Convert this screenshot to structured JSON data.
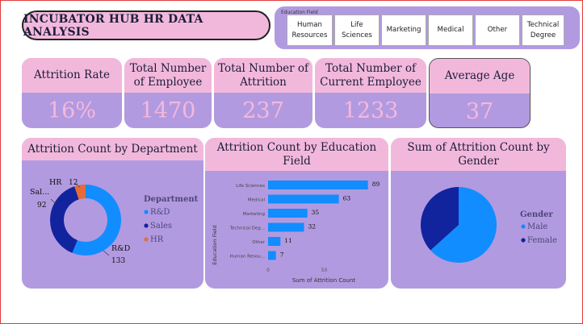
{
  "title": "INCUBATOR HUB HR  DATA ANALYSIS",
  "slicer": {
    "title": "Education Field",
    "options": [
      {
        "line1": "Human",
        "line2": "Resources"
      },
      {
        "line1": "Life",
        "line2": "Sciences"
      },
      {
        "line1": "Marketing",
        "line2": ""
      },
      {
        "line1": "Medical",
        "line2": ""
      },
      {
        "line1": "Other",
        "line2": ""
      },
      {
        "line1": "Technical",
        "line2": "Degree"
      }
    ]
  },
  "kpis": [
    {
      "label": "Attrition Rate",
      "value": "16%"
    },
    {
      "label": "Total Number of Employee",
      "value": "1470"
    },
    {
      "label": "Total Number of Attrition",
      "value": "237"
    },
    {
      "label": "Total Number of Current Employee",
      "value": "1233"
    },
    {
      "label": "Average Age",
      "value": "37"
    }
  ],
  "colors": {
    "primary": "#118dff",
    "secondary": "#12239e",
    "tertiary": "#e66c37",
    "card": "#b29ae0",
    "header": "#f2b8dc"
  },
  "chart_data": [
    {
      "type": "pie",
      "title": "Attrition Count by Department",
      "legend_title": "Department",
      "legend_position": "right",
      "style": "donut",
      "slices": [
        {
          "name": "R&D",
          "value": 133,
          "label": "R&D",
          "value_label": "133"
        },
        {
          "name": "Sales",
          "value": 92,
          "label": "Sal...",
          "value_label": "92"
        },
        {
          "name": "HR",
          "value": 12,
          "label": "HR",
          "value_label": "12"
        }
      ]
    },
    {
      "type": "bar",
      "orientation": "horizontal",
      "title": "Attrition Count by Education Field",
      "xlabel": "Sum of Attrition Count",
      "ylabel": "Education Field",
      "categories": [
        "Life Sciences",
        "Medical",
        "Marketing",
        "Technical Deg...",
        "Other",
        "Human Resou..."
      ],
      "values": [
        89,
        63,
        35,
        32,
        11,
        7
      ],
      "xticks": [
        0,
        50
      ],
      "xlim": [
        0,
        100
      ]
    },
    {
      "type": "pie",
      "title": "Sum of Attrition Count by Gender",
      "legend_title": "Gender",
      "legend_position": "right",
      "slices": [
        {
          "name": "Male",
          "value": 150
        },
        {
          "name": "Female",
          "value": 87
        }
      ]
    }
  ]
}
